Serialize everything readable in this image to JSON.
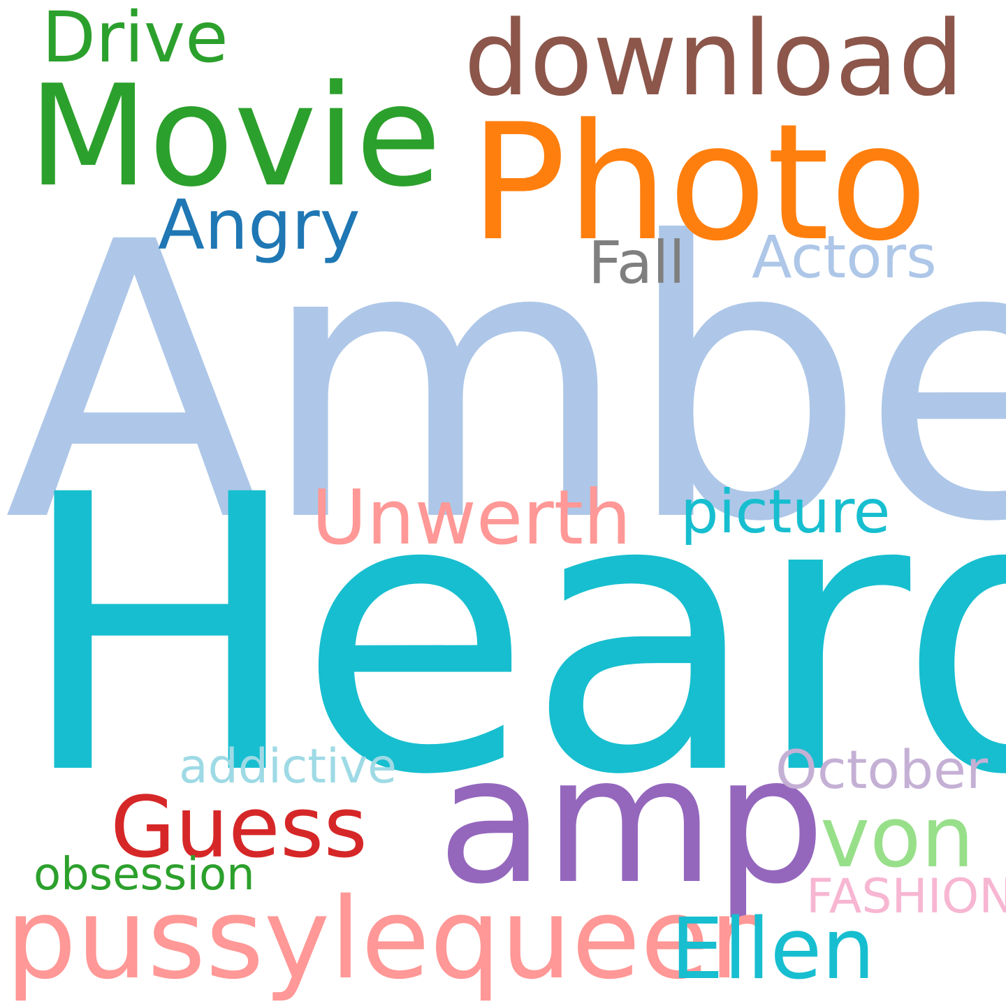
{
  "word_cloud": {
    "background": "#ffffff",
    "words": [
      {
        "text": "Amber",
        "color": "#aec7e8"
      },
      {
        "text": "Heard",
        "color": "#17becf"
      },
      {
        "text": "Photo",
        "color": "#ff7f0e"
      },
      {
        "text": "Movie",
        "color": "#2ca02c"
      },
      {
        "text": "download",
        "color": "#8c564b"
      },
      {
        "text": "Drive",
        "color": "#2ca02c"
      },
      {
        "text": "Angry",
        "color": "#1f77b4"
      },
      {
        "text": "Fall",
        "color": "#7f7f7f"
      },
      {
        "text": "Actors",
        "color": "#aec7e8"
      },
      {
        "text": "Unwerth",
        "color": "#ff9896"
      },
      {
        "text": "picture",
        "color": "#17becf"
      },
      {
        "text": "amp",
        "color": "#9467bd"
      },
      {
        "text": "addictive",
        "color": "#9edae5"
      },
      {
        "text": "October",
        "color": "#c5b0d5"
      },
      {
        "text": "Guess",
        "color": "#d62728"
      },
      {
        "text": "von",
        "color": "#98df8a"
      },
      {
        "text": "obsession",
        "color": "#2ca02c"
      },
      {
        "text": "FASHION",
        "color": "#f7b6d2"
      },
      {
        "text": "pussylequeer",
        "color": "#ff9896"
      },
      {
        "text": "Ellen",
        "color": "#17becf"
      }
    ]
  }
}
